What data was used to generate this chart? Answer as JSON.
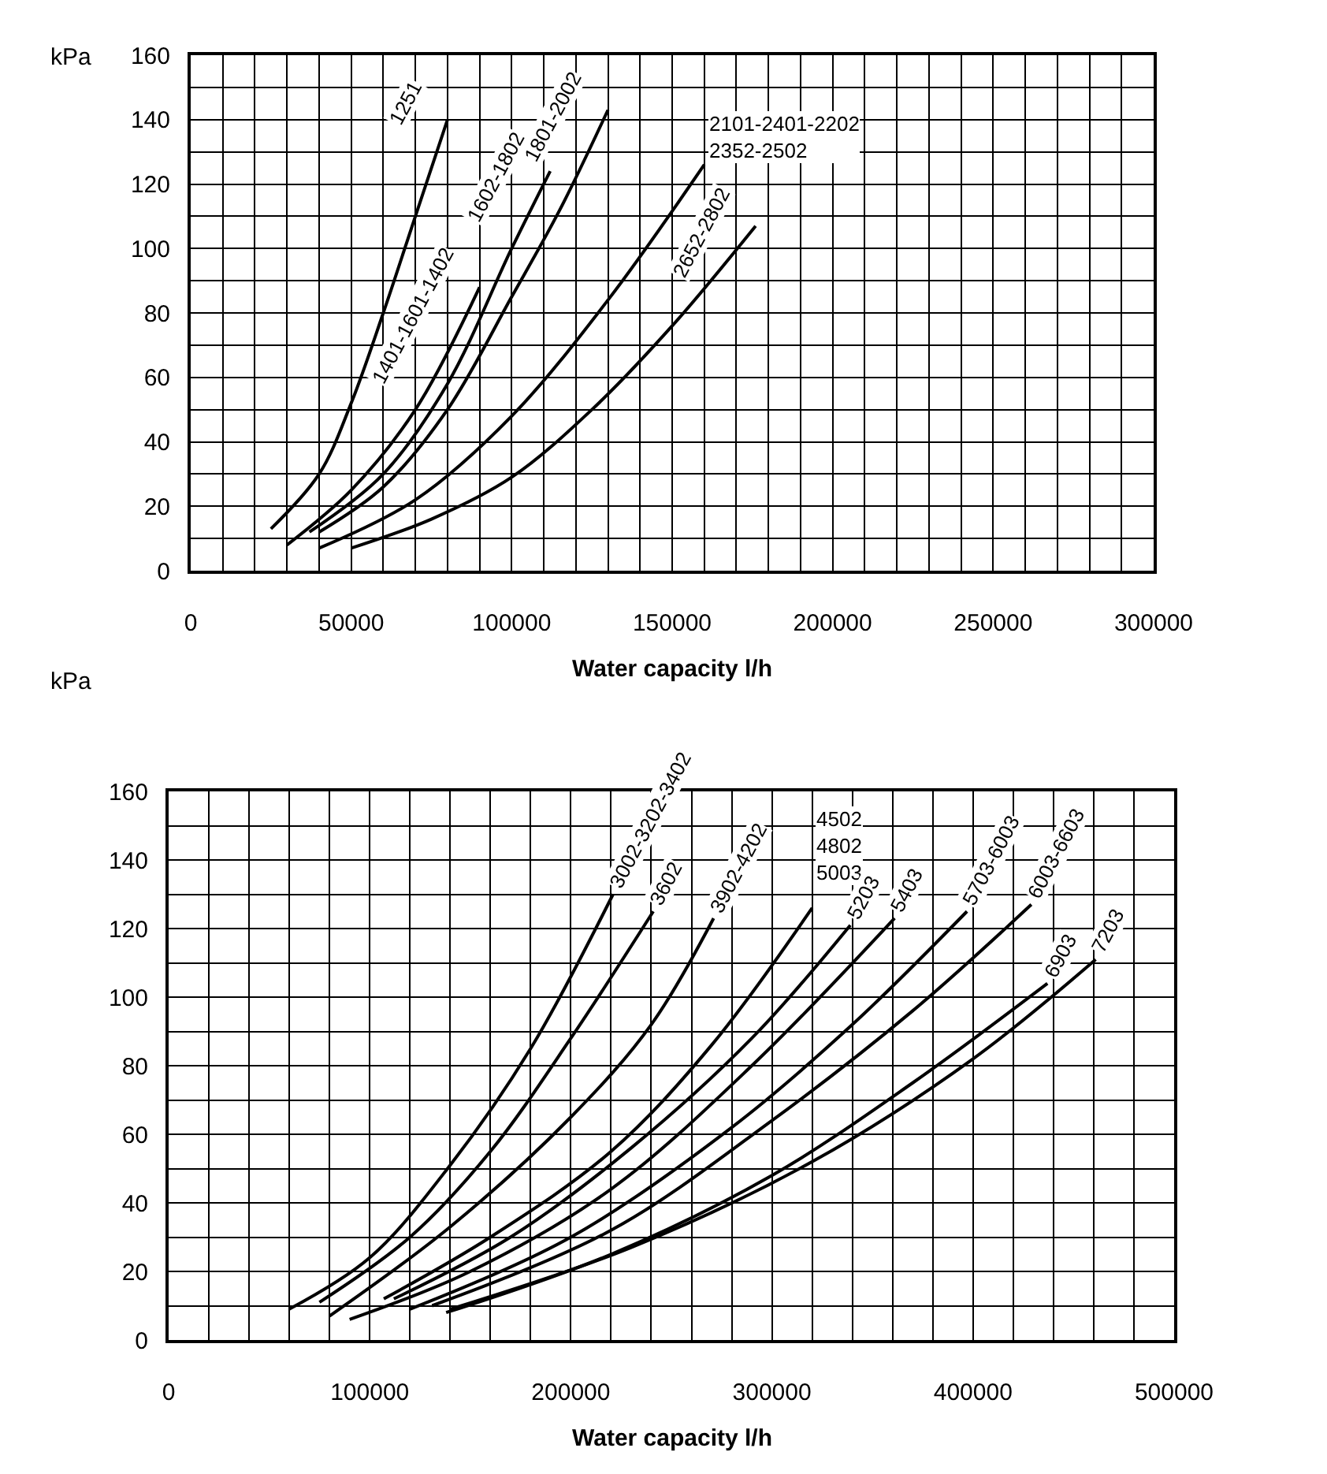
{
  "chart_data": [
    {
      "type": "line",
      "ylabel": "kPa",
      "xlabel": "Water capacity l/h",
      "xlim": [
        0,
        300000
      ],
      "xticks": [
        0,
        50000,
        100000,
        150000,
        200000,
        250000,
        300000
      ],
      "ylim": [
        0,
        160
      ],
      "yticks": [
        0,
        20,
        40,
        60,
        80,
        100,
        120,
        140,
        160
      ],
      "grid": true,
      "marker": "none",
      "line_style": "solid",
      "series": [
        {
          "name": "1251",
          "color": "#000000",
          "x": [
            25000,
            40000,
            50000,
            60000,
            70000,
            80000
          ],
          "values": [
            13,
            30,
            52,
            80,
            110,
            140
          ]
        },
        {
          "name": "1401-1601-1402",
          "color": "#000000",
          "x": [
            30000,
            50000,
            70000,
            90000
          ],
          "values": [
            8,
            25,
            50,
            88
          ]
        },
        {
          "name": "1602-1802",
          "color": "#000000",
          "x": [
            37000,
            60000,
            80000,
            100000,
            112000
          ],
          "values": [
            12,
            30,
            58,
            100,
            124
          ]
        },
        {
          "name": "1801-2002",
          "color": "#000000",
          "x": [
            40000,
            60000,
            80000,
            100000,
            115000,
            130000
          ],
          "values": [
            12,
            26,
            50,
            85,
            112,
            143
          ]
        },
        {
          "name": "2101-2401-2202\n2352-2502",
          "color": "#000000",
          "x": [
            40000,
            70000,
            100000,
            130000,
            160000
          ],
          "values": [
            7,
            22,
            48,
            84,
            126
          ]
        },
        {
          "name": "2652-2802",
          "color": "#000000",
          "x": [
            50000,
            75000,
            100000,
            125000,
            150000,
            176000
          ],
          "values": [
            7,
            16,
            29,
            50,
            76,
            107
          ]
        }
      ]
    },
    {
      "type": "line",
      "ylabel": "kPa",
      "xlabel": "Water capacity l/h",
      "xlim": [
        0,
        500000
      ],
      "xticks": [
        0,
        100000,
        200000,
        300000,
        400000,
        500000
      ],
      "ylim": [
        0,
        160
      ],
      "yticks": [
        0,
        20,
        40,
        60,
        80,
        100,
        120,
        140,
        160
      ],
      "grid": true,
      "marker": "none",
      "line_style": "solid",
      "series": [
        {
          "name": "3002-3202-3402",
          "color": "#000000",
          "x": [
            60000,
            100000,
            140000,
            180000,
            221000
          ],
          "values": [
            9,
            24,
            51,
            85,
            130
          ]
        },
        {
          "name": "3602",
          "color": "#000000",
          "x": [
            75000,
            120000,
            160000,
            200000,
            241000
          ],
          "values": [
            11,
            30,
            55,
            88,
            125
          ]
        },
        {
          "name": "3902-4202",
          "color": "#000000",
          "x": [
            80000,
            140000,
            200000,
            240000,
            271000
          ],
          "values": [
            7,
            33,
            65,
            92,
            123
          ]
        },
        {
          "name": "4502\n4802\n5003",
          "color": "#000000",
          "x": [
            107000,
            160000,
            220000,
            270000,
            320000
          ],
          "values": [
            12,
            30,
            55,
            86,
            126
          ]
        },
        {
          "name": "5203",
          "color": "#000000",
          "x": [
            112000,
            170000,
            230000,
            290000,
            339000
          ],
          "values": [
            12,
            30,
            56,
            88,
            121
          ]
        },
        {
          "name": "5403",
          "color": "#000000",
          "x": [
            90000,
            150000,
            220000,
            290000,
            361000
          ],
          "values": [
            6,
            20,
            44,
            80,
            123
          ]
        },
        {
          "name": "5703-6003",
          "color": "#000000",
          "x": [
            120000,
            200000,
            280000,
            340000,
            397000
          ],
          "values": [
            9,
            30,
            62,
            92,
            125
          ]
        },
        {
          "name": "6003-6603",
          "color": "#000000",
          "x": [
            131000,
            220000,
            300000,
            370000,
            429000
          ],
          "values": [
            10,
            32,
            64,
            96,
            127
          ]
        },
        {
          "name": "6903",
          "color": "#000000",
          "x": [
            138000,
            220000,
            300000,
            370000,
            437000
          ],
          "values": [
            8,
            25,
            48,
            75,
            104
          ]
        },
        {
          "name": "7203",
          "color": "#000000",
          "x": [
            140000,
            230000,
            320000,
            400000,
            461000
          ],
          "values": [
            9,
            27,
            52,
            82,
            111
          ]
        }
      ]
    }
  ]
}
